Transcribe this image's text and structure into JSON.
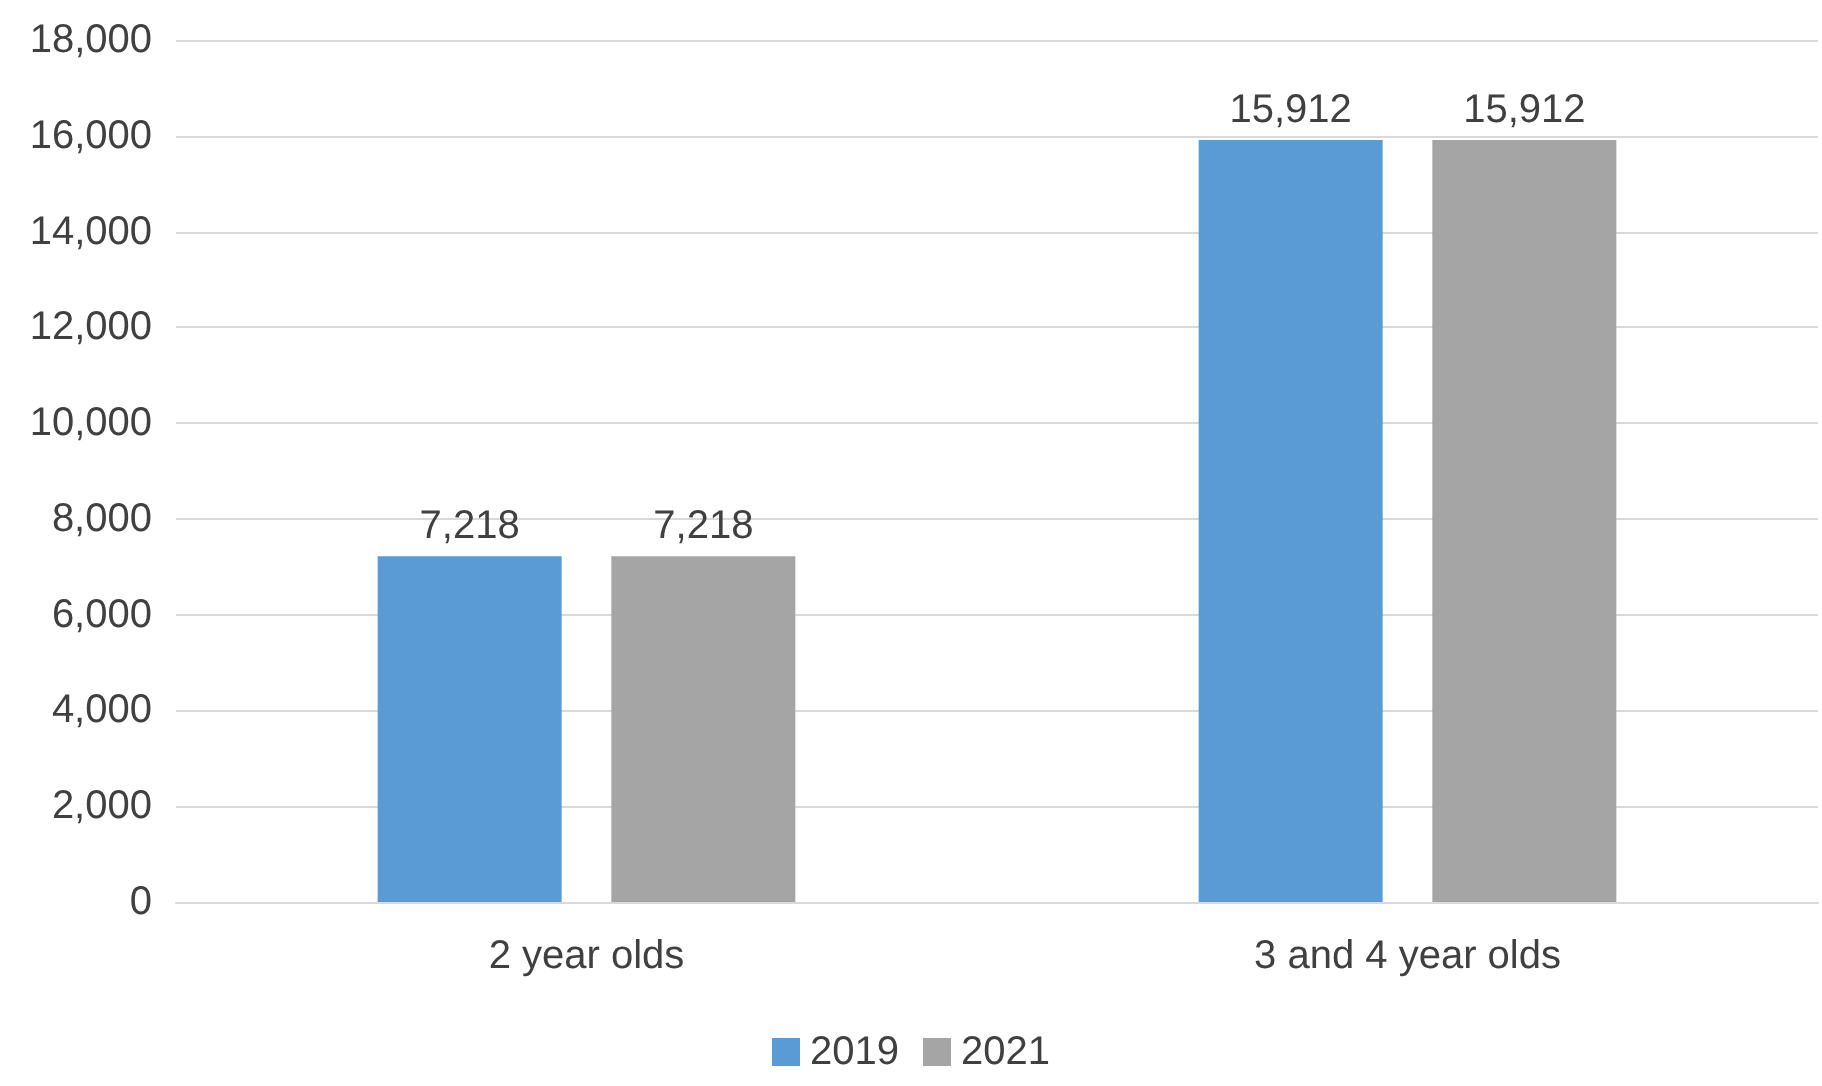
{
  "chart_data": {
    "type": "bar",
    "categories": [
      "2 year olds",
      "3 and 4 year olds"
    ],
    "series": [
      {
        "name": "2019",
        "color": "#5b9bd5",
        "values": [
          7218,
          15912
        ],
        "value_labels": [
          "7,218",
          "15,912"
        ]
      },
      {
        "name": "2021",
        "color": "#a5a5a5",
        "values": [
          7218,
          15912
        ],
        "value_labels": [
          "7,218",
          "15,912"
        ]
      }
    ],
    "ylim": [
      0,
      18000
    ],
    "yticks": [
      0,
      {
        "value": 2000,
        "label": "2,000"
      },
      {
        "value": 4000,
        "label": "4,000"
      },
      {
        "value": 6000,
        "label": "6,000"
      },
      {
        "value": 8000,
        "label": "8,000"
      },
      {
        "value": 10000,
        "label": "10,000"
      },
      {
        "value": 12000,
        "label": "12,000"
      },
      {
        "value": 14000,
        "label": "14,000"
      },
      {
        "value": 16000,
        "label": "16,000"
      },
      {
        "value": 18000,
        "label": "18,000"
      }
    ],
    "grid": "y",
    "legend": "bottom"
  }
}
